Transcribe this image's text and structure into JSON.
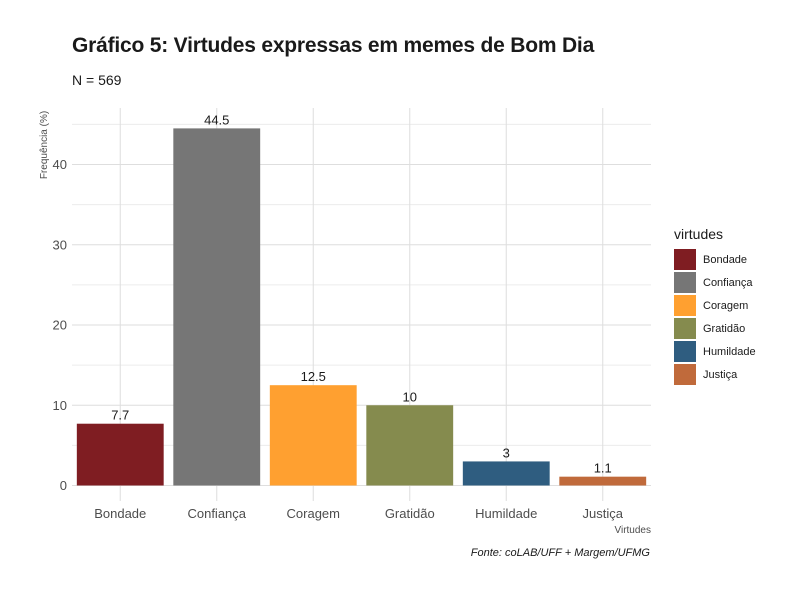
{
  "chart_data": {
    "type": "bar",
    "title": "Gráfico 5: Virtudes expressas em memes de Bom Dia",
    "subtitle": "N = 569",
    "xlabel": "Virtudes",
    "ylabel": "Frequência (%)",
    "caption": "Fonte: coLAB/UFF + Margem/UFMG",
    "categories": [
      "Bondade",
      "Confiança",
      "Coragem",
      "Gratidão",
      "Humildade",
      "Justiça"
    ],
    "values": [
      7.7,
      44.5,
      12.5,
      10,
      3,
      1.1
    ],
    "data_labels": [
      "7.7",
      "44.5",
      "12.5",
      "10",
      "3",
      "1.1"
    ],
    "colors": [
      "#7f1d22",
      "#767676",
      "#ffa030",
      "#858b4e",
      "#2f5d80",
      "#c06a3b"
    ],
    "ylim": [
      0,
      47
    ],
    "yticks": [
      0,
      10,
      20,
      30,
      40
    ],
    "grid": true,
    "legend": {
      "title": "virtudes",
      "position": "right",
      "entries": [
        "Bondade",
        "Confiança",
        "Coragem",
        "Gratidão",
        "Humildade",
        "Justiça"
      ]
    }
  }
}
